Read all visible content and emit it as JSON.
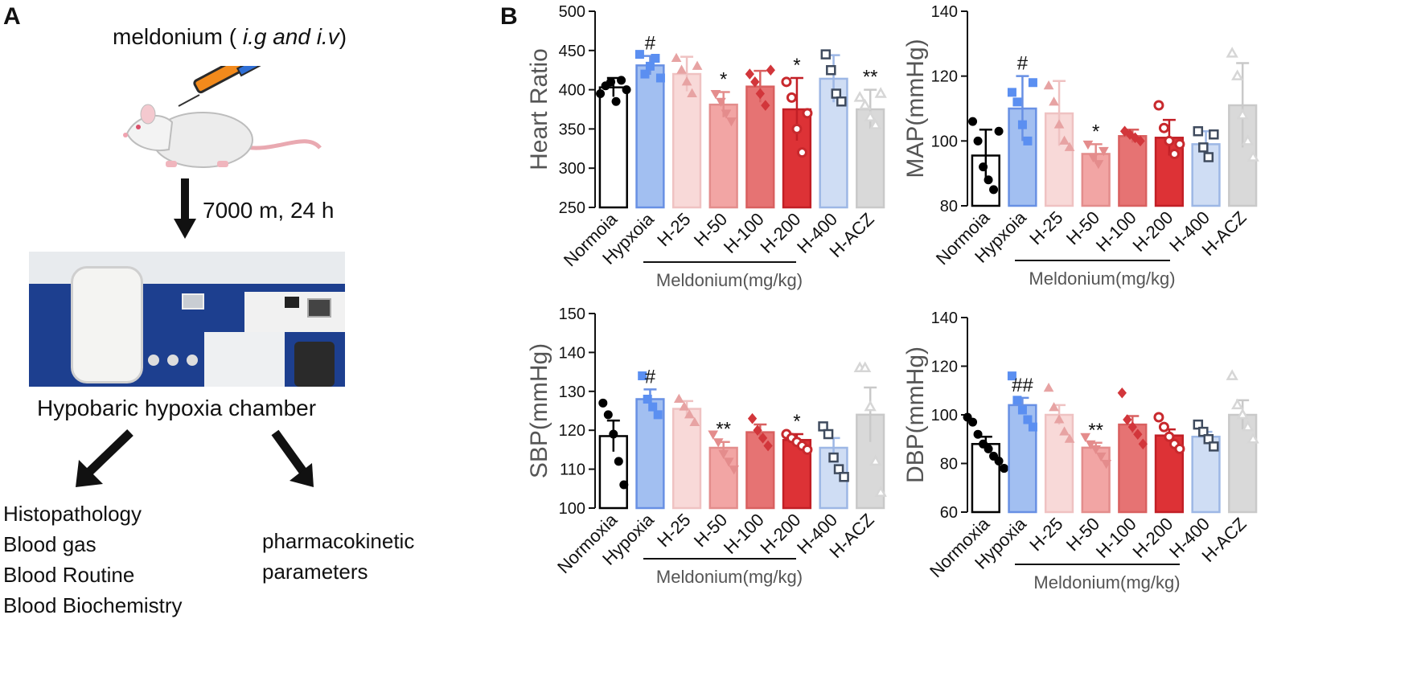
{
  "panel_a": {
    "letter": "A",
    "drug_prefix": "meldonium ( ",
    "drug_routes": "i.g and  i.v",
    "drug_suffix": ")",
    "condition": "7000 m, 24 h",
    "chamber_label": "Hypobaric hypoxia chamber",
    "outputs_left": [
      "Histopathology",
      "Blood gas",
      "Blood Routine",
      "Blood Biochemistry"
    ],
    "outputs_right": [
      "pharmacokinetic",
      "parameters"
    ],
    "colors": {
      "arrow": "#111111",
      "chamber_wall": "#1d3f8f"
    }
  },
  "panel_b": {
    "letter": "B"
  },
  "chart_data": [
    {
      "type": "bar",
      "ylabel": "Heart Ratio",
      "ylim": [
        250,
        500
      ],
      "yticks": [
        250,
        300,
        350,
        400,
        450,
        500
      ],
      "categories": [
        "Normoia",
        "Hypxoia",
        "H-25",
        "H-50",
        "H-100",
        "H-200",
        "H-400",
        "H-ACZ"
      ],
      "values": [
        403,
        431,
        420,
        381,
        404,
        375,
        414,
        375
      ],
      "errors": [
        12,
        12,
        22,
        16,
        20,
        40,
        30,
        25
      ],
      "annotations": [
        "",
        "#",
        "",
        "*",
        "",
        "*",
        "",
        "**"
      ],
      "points": [
        [
          395,
          405,
          410,
          385,
          412,
          400
        ],
        [
          445,
          420,
          430,
          440,
          415
        ],
        [
          440,
          425,
          410,
          395,
          430
        ],
        [
          395,
          385,
          370,
          360
        ],
        [
          420,
          410,
          395,
          380,
          425
        ],
        [
          410,
          390,
          350,
          320,
          370
        ],
        [
          445,
          425,
          395,
          385
        ],
        [
          390,
          380,
          365,
          355,
          395
        ]
      ],
      "group_label": "Meldonium(mg/kg)"
    },
    {
      "type": "bar",
      "ylabel": "MAP(mmHg)",
      "ylim": [
        80,
        140
      ],
      "yticks": [
        80,
        100,
        120,
        140
      ],
      "categories": [
        "Normoia",
        "Hypxoia",
        "H-25",
        "H-50",
        "H-100",
        "H-200",
        "H-400",
        "H-ACZ"
      ],
      "values": [
        95.5,
        110,
        108.5,
        96,
        101.5,
        101,
        99,
        111
      ],
      "errors": [
        8,
        10,
        10,
        3,
        2,
        5.5,
        4,
        13
      ],
      "annotations": [
        "",
        "#",
        "",
        "*",
        "",
        "",
        "",
        ""
      ],
      "points": [
        [
          106,
          100,
          92,
          88,
          85,
          103
        ],
        [
          115,
          112,
          105,
          100,
          118
        ],
        [
          117,
          112,
          105,
          100,
          98
        ],
        [
          99,
          95,
          93,
          97
        ],
        [
          103,
          102,
          101,
          100
        ],
        [
          111,
          104,
          100,
          96,
          99
        ],
        [
          103,
          98,
          95,
          102
        ],
        [
          127,
          120,
          108,
          100,
          95
        ]
      ],
      "group_label": "Meldonium(mg/kg)"
    },
    {
      "type": "bar",
      "ylabel": "SBP(mmHg)",
      "ylim": [
        100,
        150
      ],
      "yticks": [
        100,
        110,
        120,
        130,
        140,
        150
      ],
      "categories": [
        "Normoxia",
        "Hypoxia",
        "H-25",
        "H-50",
        "H-100",
        "H-200",
        "H-400",
        "H-ACZ"
      ],
      "values": [
        118.5,
        128,
        125.5,
        115.5,
        119.5,
        117.5,
        115.5,
        124
      ],
      "errors": [
        4,
        2.5,
        2,
        1.5,
        2,
        1.5,
        2.5,
        7
      ],
      "annotations": [
        "",
        "#",
        "",
        "**",
        "",
        "*",
        "",
        ""
      ],
      "points": [
        [
          127,
          124,
          119,
          112,
          106
        ],
        [
          134,
          128,
          126,
          124
        ],
        [
          128,
          126,
          124,
          122
        ],
        [
          119,
          117,
          114,
          112,
          110
        ],
        [
          123,
          120,
          118,
          116
        ],
        [
          119,
          118,
          117,
          116,
          115
        ],
        [
          121,
          119,
          113,
          110,
          108
        ],
        [
          136,
          136,
          126,
          112,
          104
        ]
      ],
      "group_label": "Meldonium(mg/kg)"
    },
    {
      "type": "bar",
      "ylabel": "DBP(mmHg)",
      "ylim": [
        60,
        140
      ],
      "yticks": [
        60,
        80,
        100,
        120,
        140
      ],
      "categories": [
        "Normoxia",
        "Hypoxia",
        "H-25",
        "H-50",
        "H-100",
        "H-200",
        "H-400",
        "H-ACZ"
      ],
      "values": [
        88,
        104,
        100,
        86.5,
        96,
        91.5,
        91,
        100
      ],
      "errors": [
        3,
        3,
        4,
        2,
        3.5,
        2.5,
        2,
        6
      ],
      "annotations": [
        "",
        "##",
        "",
        "**",
        "",
        "",
        "",
        ""
      ],
      "points": [
        [
          99,
          97,
          92,
          88,
          86,
          83,
          81,
          78
        ],
        [
          116,
          106,
          102,
          98,
          95
        ],
        [
          111,
          103,
          98,
          93,
          90
        ],
        [
          91,
          88,
          86,
          83,
          80
        ],
        [
          109,
          98,
          95,
          92,
          88
        ],
        [
          99,
          95,
          91,
          88,
          86
        ],
        [
          96,
          93,
          90,
          87
        ],
        [
          116,
          104,
          100,
          95,
          90
        ]
      ],
      "group_label": "Meldonium(mg/kg)"
    }
  ],
  "bar_colors": [
    "#ffffff",
    "#a2bff1",
    "#f8d9d8",
    "#f2a5a4",
    "#e67373",
    "#dd3236",
    "#cfddf4",
    "#d9d9d9"
  ],
  "bar_strokes": [
    "#000000",
    "#6890e4",
    "#efc2c2",
    "#e38d8c",
    "#d96060",
    "#c21f26",
    "#9db7e5",
    "#c9c9c9"
  ],
  "point_colors": [
    "#000000",
    "#5b8ff1",
    "#e7a3a3",
    "#e48c8c",
    "#d2363b",
    "#c8292d",
    "#3f4b5e",
    "#d6d6d6"
  ],
  "point_shapes": [
    "circle",
    "square",
    "triangle-up",
    "triangle-down",
    "diamond",
    "circle-ring",
    "square-ring",
    "triangle-ring"
  ]
}
